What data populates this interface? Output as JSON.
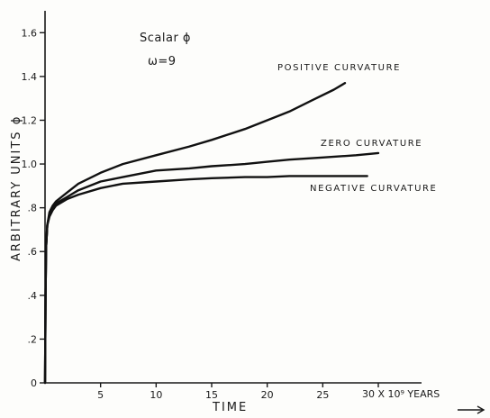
{
  "chart_data": {
    "type": "line",
    "title": "Scalar ϕ",
    "subtitle": "ω=9",
    "xlabel": "TIME",
    "ylabel": "ARBITRARY UNITS ϕ",
    "x_unit_label": "30 X 10⁹ YEARS",
    "xlim": [
      0,
      30
    ],
    "ylim": [
      0,
      1.7
    ],
    "x_ticks": [
      5,
      10,
      15,
      20,
      25
    ],
    "x_tick_labels": [
      "5",
      "10",
      "15",
      "20",
      "25"
    ],
    "y_ticks": [
      0,
      0.2,
      0.4,
      0.6,
      0.8,
      1.0,
      1.2,
      1.4,
      1.6
    ],
    "y_tick_labels": [
      "0",
      ".2",
      ".4",
      ".6",
      ".8",
      "1.0",
      "1.2",
      "1.4",
      "1.6"
    ],
    "grid": false,
    "series": [
      {
        "name": "POSITIVE CURVATURE",
        "x": [
          0,
          0.05,
          0.1,
          0.2,
          0.4,
          0.7,
          1,
          2,
          3,
          5,
          7,
          10,
          13,
          15,
          18,
          20,
          22,
          24,
          26,
          27
        ],
        "y": [
          0,
          0.4,
          0.62,
          0.72,
          0.78,
          0.81,
          0.83,
          0.87,
          0.91,
          0.96,
          1.0,
          1.04,
          1.08,
          1.11,
          1.16,
          1.2,
          1.24,
          1.29,
          1.34,
          1.37
        ]
      },
      {
        "name": "ZERO CURVATURE",
        "x": [
          0,
          0.05,
          0.1,
          0.2,
          0.4,
          0.7,
          1,
          2,
          3,
          5,
          7,
          10,
          13,
          15,
          18,
          20,
          22,
          25,
          28,
          30
        ],
        "y": [
          0,
          0.4,
          0.62,
          0.72,
          0.77,
          0.8,
          0.82,
          0.85,
          0.88,
          0.92,
          0.94,
          0.97,
          0.98,
          0.99,
          1.0,
          1.01,
          1.02,
          1.03,
          1.04,
          1.05
        ]
      },
      {
        "name": "NEGATIVE CURVATURE",
        "x": [
          0,
          0.05,
          0.1,
          0.2,
          0.4,
          0.7,
          1,
          2,
          3,
          5,
          7,
          10,
          13,
          15,
          18,
          20,
          22,
          25,
          29
        ],
        "y": [
          0,
          0.4,
          0.62,
          0.72,
          0.76,
          0.79,
          0.81,
          0.84,
          0.86,
          0.89,
          0.91,
          0.92,
          0.93,
          0.935,
          0.94,
          0.94,
          0.945,
          0.945,
          0.945
        ]
      }
    ]
  }
}
